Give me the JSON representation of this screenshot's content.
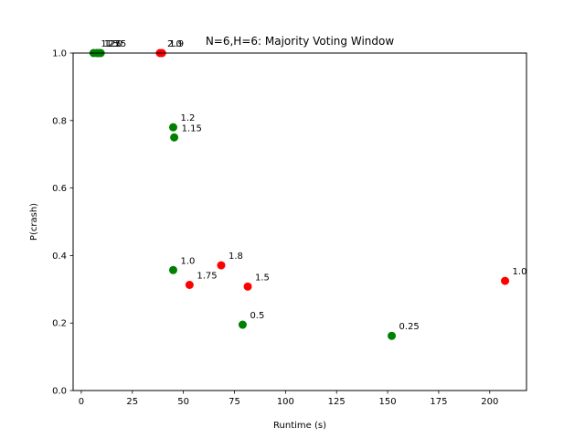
{
  "chart_data": {
    "type": "scatter",
    "title": "N=6,H=6: Majority Voting Window",
    "xlabel": "Runtime (s)",
    "ylabel": "P(crash)",
    "xlim": [
      -4,
      218
    ],
    "ylim": [
      0,
      1
    ],
    "xticks": [
      0,
      25,
      50,
      75,
      100,
      125,
      150,
      175,
      200
    ],
    "yticks": [
      0.0,
      0.2,
      0.4,
      0.6,
      0.8,
      1.0
    ],
    "grid": false,
    "colors": {
      "green": "#008000",
      "red": "#ff0000"
    },
    "points": [
      {
        "x": 6,
        "y": 1.0,
        "label": "1.25",
        "color": "green"
      },
      {
        "x": 7.5,
        "y": 1.0,
        "label": "1.5",
        "color": "green"
      },
      {
        "x": 8.5,
        "y": 1.0,
        "label": "1.75",
        "color": "green"
      },
      {
        "x": 9.5,
        "y": 1.0,
        "label": "2.0",
        "color": "green"
      },
      {
        "x": 38.5,
        "y": 1.0,
        "label": "2.0",
        "color": "red"
      },
      {
        "x": 39.5,
        "y": 1.0,
        "label": "1.9",
        "color": "red"
      },
      {
        "x": 45,
        "y": 0.78,
        "label": "1.2",
        "color": "green"
      },
      {
        "x": 45.5,
        "y": 0.75,
        "label": "1.15",
        "color": "green"
      },
      {
        "x": 45,
        "y": 0.357,
        "label": "1.0",
        "color": "green"
      },
      {
        "x": 53,
        "y": 0.313,
        "label": "1.75",
        "color": "red"
      },
      {
        "x": 68.5,
        "y": 0.371,
        "label": "1.8",
        "color": "red"
      },
      {
        "x": 79,
        "y": 0.195,
        "label": "0.5",
        "color": "green"
      },
      {
        "x": 81.5,
        "y": 0.308,
        "label": "1.5",
        "color": "red"
      },
      {
        "x": 152,
        "y": 0.162,
        "label": "0.25",
        "color": "green"
      },
      {
        "x": 207.5,
        "y": 0.325,
        "label": "1.0",
        "color": "red"
      }
    ]
  }
}
